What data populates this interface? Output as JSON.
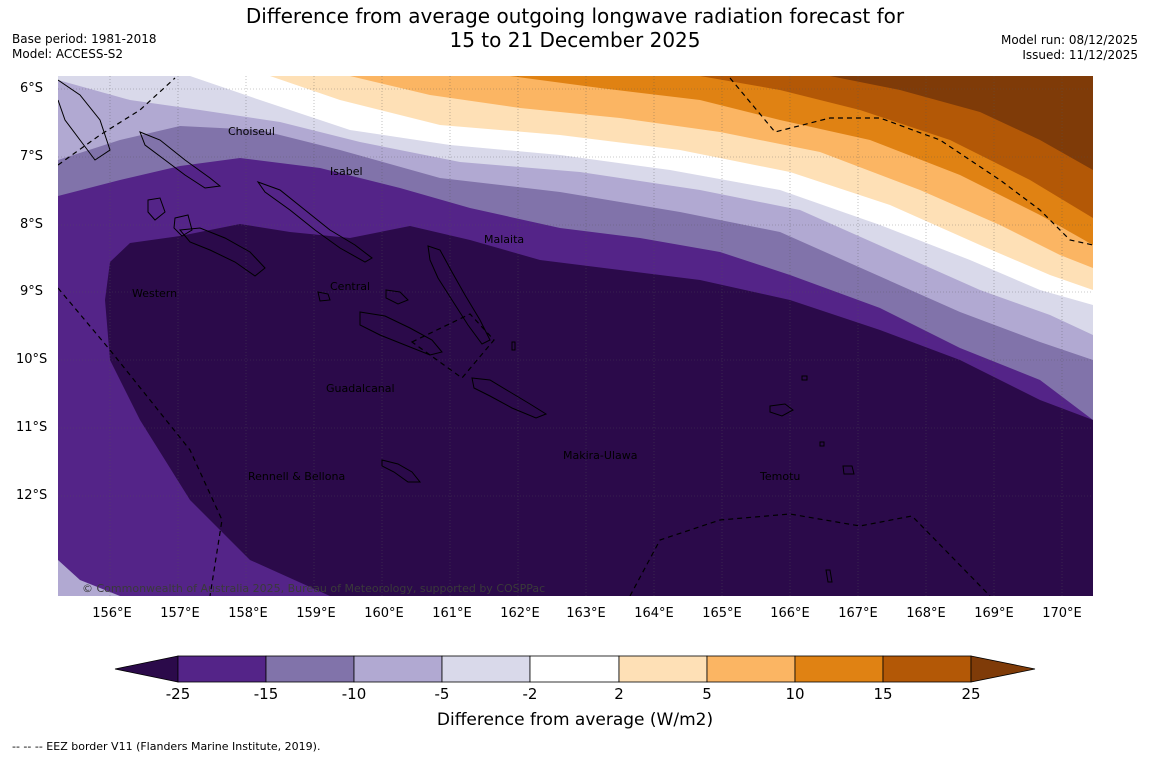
{
  "title": {
    "line1": "Difference from average outgoing longwave radiation forecast for",
    "line2": "15 to 21 December 2025"
  },
  "meta": {
    "base_period": "Base period: 1981-2018",
    "model": "Model: ACCESS-S2",
    "model_run": "Model run: 08/12/2025",
    "issued": "Issued: 11/12/2025"
  },
  "map": {
    "lat_labels": [
      "6°S",
      "7°S",
      "8°S",
      "9°S",
      "10°S",
      "11°S",
      "12°S"
    ],
    "lon_labels": [
      "156°E",
      "157°E",
      "158°E",
      "159°E",
      "160°E",
      "161°E",
      "162°E",
      "163°E",
      "164°E",
      "165°E",
      "166°E",
      "167°E",
      "168°E",
      "169°E",
      "170°E"
    ],
    "places": {
      "choiseul": "Choiseul",
      "isabel": "Isabel",
      "malaita": "Malaita",
      "western": "Western",
      "central": "Central",
      "guadalcanal": "Guadalcanal",
      "makira": "Makira-Ulawa",
      "rennell": "Rennell & Bellona",
      "temotu": "Temotu"
    },
    "copyright": "© Commonwealth of Australia 2025, Bureau of Meteorology, supported by COSPPac"
  },
  "legend": {
    "ticks": [
      "-25",
      "-15",
      "-10",
      "-5",
      "-2",
      "2",
      "5",
      "10",
      "15",
      "25"
    ],
    "colors": [
      "#2b0a4a",
      "#542488",
      "#8173aa",
      "#b1a9d2",
      "#d9d9ea",
      "#ffffff",
      "#fee0b6",
      "#fbb563",
      "#e08213",
      "#b35806",
      "#7f3b08"
    ],
    "label": "Difference from average (W/m2)"
  },
  "footer": "--  --  -- EEZ border V11 (Flanders Marine Institute, 2019)."
}
